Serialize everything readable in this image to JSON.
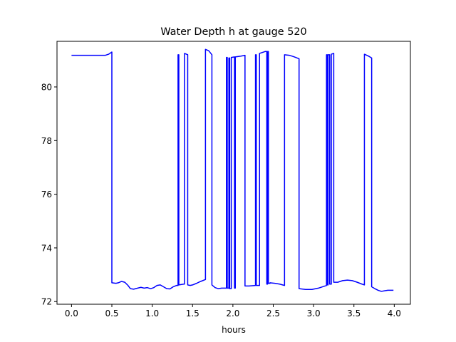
{
  "chart_data": {
    "type": "line",
    "title": "Water Depth h at gauge 520",
    "xlabel": "hours",
    "ylabel": "",
    "xlim": [
      -0.18,
      4.2
    ],
    "ylim": [
      71.9,
      81.7
    ],
    "xticks": [
      0.0,
      0.5,
      1.0,
      1.5,
      2.0,
      2.5,
      3.0,
      3.5,
      4.0
    ],
    "xtick_labels": [
      "0.0",
      "0.5",
      "1.0",
      "1.5",
      "2.0",
      "2.5",
      "3.0",
      "3.5",
      "4.0"
    ],
    "yticks": [
      72,
      74,
      76,
      78,
      80
    ],
    "ytick_labels": [
      "72",
      "74",
      "76",
      "78",
      "80"
    ],
    "grid": false,
    "legend": "none",
    "series": [
      {
        "color": "#0000ff",
        "x": [
          0.0,
          0.42,
          0.46,
          0.5,
          0.5,
          0.55,
          0.58,
          0.62,
          0.66,
          0.7,
          0.73,
          0.77,
          0.82,
          0.86,
          0.9,
          0.94,
          0.98,
          1.02,
          1.06,
          1.1,
          1.14,
          1.18,
          1.22,
          1.26,
          1.3,
          1.32,
          1.32,
          1.33,
          1.33,
          1.35,
          1.39,
          1.4,
          1.4,
          1.44,
          1.44,
          1.47,
          1.5,
          1.55,
          1.6,
          1.66,
          1.66,
          1.7,
          1.74,
          1.74,
          1.78,
          1.82,
          1.86,
          1.92,
          1.92,
          1.93,
          1.93,
          1.95,
          1.95,
          1.96,
          1.96,
          1.98,
          1.98,
          2.02,
          2.02,
          2.03,
          2.03,
          2.1,
          2.15,
          2.15,
          2.2,
          2.28,
          2.28,
          2.29,
          2.29,
          2.33,
          2.33,
          2.38,
          2.4,
          2.42,
          2.42,
          2.43,
          2.43,
          2.44,
          2.44,
          2.46,
          2.46,
          2.52,
          2.58,
          2.64,
          2.64,
          2.7,
          2.76,
          2.82,
          2.82,
          2.9,
          2.98,
          3.06,
          3.14,
          3.16,
          3.16,
          3.17,
          3.17,
          3.18,
          3.18,
          3.2,
          3.2,
          3.22,
          3.22,
          3.25,
          3.25,
          3.3,
          3.36,
          3.42,
          3.48,
          3.54,
          3.6,
          3.63,
          3.63,
          3.68,
          3.72,
          3.72,
          3.76,
          3.8,
          3.84,
          3.88,
          3.92,
          3.96,
          3.99
        ],
        "y": [
          81.18,
          81.18,
          81.22,
          81.3,
          72.7,
          72.68,
          72.7,
          72.75,
          72.72,
          72.6,
          72.48,
          72.46,
          72.5,
          72.53,
          72.5,
          72.52,
          72.48,
          72.52,
          72.6,
          72.62,
          72.55,
          72.48,
          72.47,
          72.55,
          72.6,
          72.6,
          81.2,
          81.2,
          72.62,
          72.63,
          72.65,
          72.65,
          81.25,
          81.2,
          72.62,
          72.6,
          72.62,
          72.68,
          72.75,
          72.82,
          81.4,
          81.35,
          81.2,
          72.62,
          72.52,
          72.48,
          72.5,
          72.5,
          81.1,
          81.1,
          72.5,
          72.5,
          81.08,
          81.08,
          72.48,
          72.48,
          81.1,
          81.12,
          72.5,
          72.5,
          81.12,
          81.15,
          81.18,
          72.58,
          72.58,
          72.6,
          81.2,
          81.2,
          72.6,
          72.6,
          81.25,
          81.3,
          81.32,
          81.32,
          72.65,
          72.65,
          81.32,
          81.32,
          72.68,
          72.68,
          72.7,
          72.68,
          72.65,
          72.6,
          81.2,
          81.18,
          81.12,
          81.05,
          72.48,
          72.45,
          72.45,
          72.5,
          72.58,
          72.6,
          81.2,
          81.2,
          72.62,
          72.62,
          81.2,
          81.2,
          72.65,
          72.65,
          81.22,
          81.25,
          72.72,
          72.72,
          72.78,
          72.8,
          72.78,
          72.72,
          72.65,
          72.62,
          81.22,
          81.15,
          81.08,
          72.55,
          72.48,
          72.42,
          72.38,
          72.4,
          72.42,
          72.42,
          72.42
        ]
      }
    ]
  }
}
